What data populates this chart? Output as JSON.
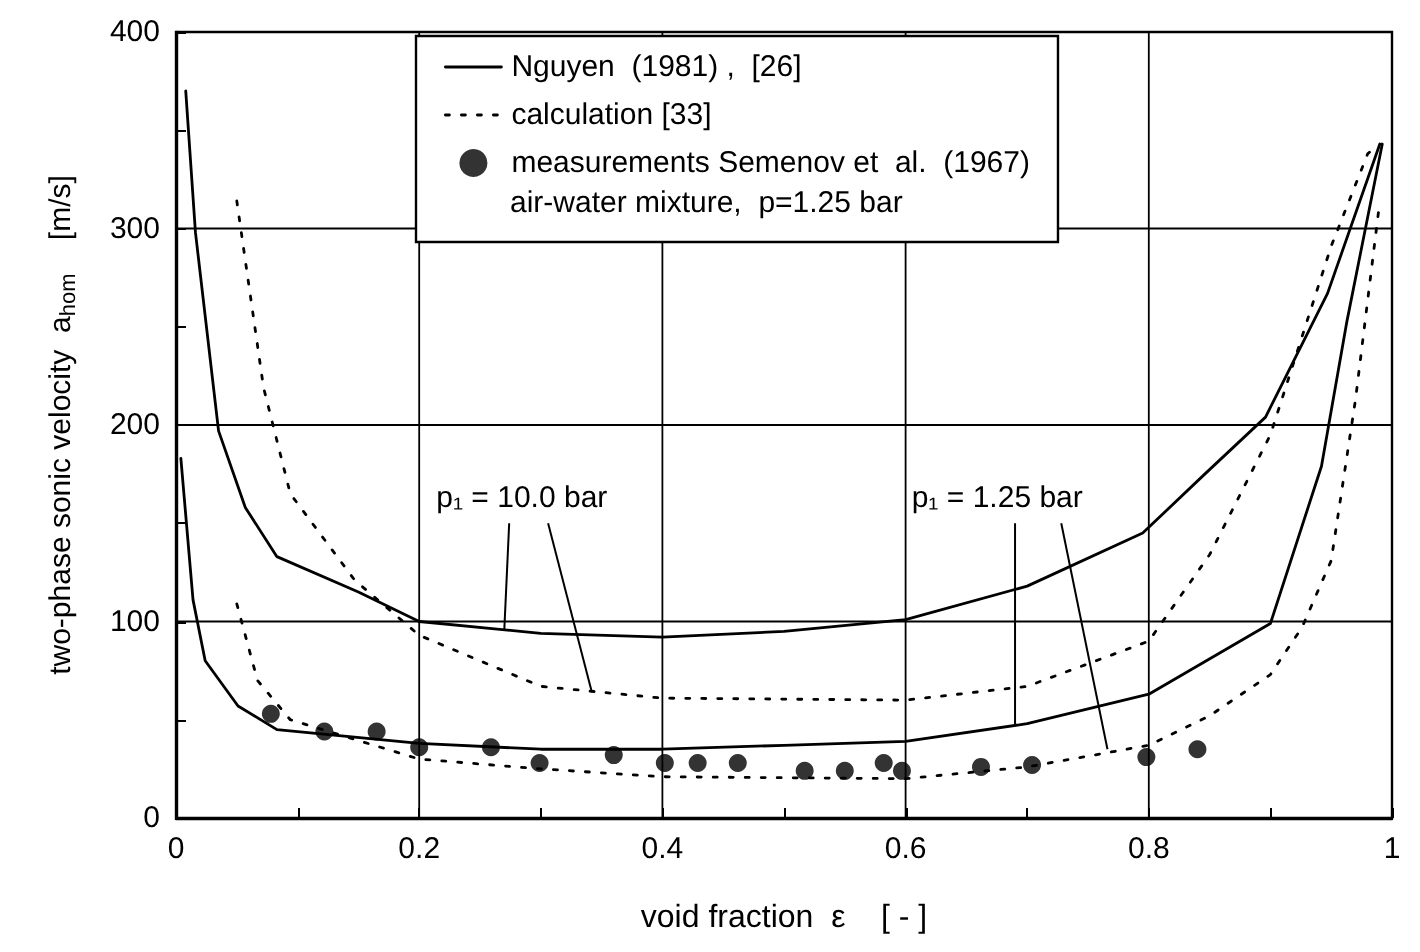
{
  "chart_data": {
    "type": "line",
    "xlabel": "void fraction  ε    [ - ]",
    "ylabel": "two-phase sonic velocity  a$_{hom}$    [m/s]",
    "xlim": [
      0,
      1
    ],
    "ylim": [
      0,
      400
    ],
    "xticks": [
      0,
      {
        "value": 0.1,
        "label": null
      },
      0.2,
      {
        "value": 0.3,
        "label": null
      },
      0.4,
      {
        "value": 0.5,
        "label": null
      },
      0.6,
      {
        "value": 0.7,
        "label": null
      },
      0.8,
      {
        "value": 0.9,
        "label": null
      },
      1
    ],
    "yticks": [
      0,
      {
        "value": 50,
        "label": null
      },
      100,
      {
        "value": 150,
        "label": null
      },
      200,
      {
        "value": 250,
        "label": null
      },
      300,
      {
        "value": 350,
        "label": null
      },
      400
    ],
    "grid": true,
    "legend": "top",
    "marker": "none",
    "series": [
      {
        "name": "Nguyen  (1981) ,  [26]",
        "color": "#000000",
        "line_style": "solid",
        "x": [
          0.008,
          0.016,
          0.035,
          0.057,
          0.083,
          0.15,
          0.2,
          0.3,
          0.4,
          0.5,
          0.6,
          0.7,
          0.795,
          0.846,
          0.896,
          0.947,
          0.99
        ],
        "values": [
          370,
          298,
          197,
          158,
          133,
          115,
          100,
          94,
          92,
          95,
          101,
          118,
          145,
          175,
          204,
          267,
          343
        ]
      },
      {
        "color": "#000000",
        "line_style": "solid",
        "x": [
          0.004,
          0.014,
          0.024,
          0.051,
          0.083,
          0.2,
          0.3,
          0.4,
          0.5,
          0.6,
          0.7,
          0.8,
          0.9,
          0.942,
          0.963,
          0.992
        ],
        "values": [
          183,
          111,
          80,
          57,
          45,
          38,
          35,
          35,
          37,
          39,
          48,
          63,
          99,
          179,
          253,
          343
        ]
      },
      {
        "name": "calculation [33]",
        "color": "#000000",
        "line_style": "dotted",
        "x": [
          0.05,
          0.072,
          0.094,
          0.147,
          0.2,
          0.3,
          0.4,
          0.6,
          0.7,
          0.8,
          0.85,
          0.9,
          0.95,
          0.98,
          0.987
        ],
        "values": [
          314,
          219,
          165,
          121,
          93,
          67,
          61,
          60,
          67,
          90,
          134,
          195,
          291,
          338,
          342
        ]
      },
      {
        "color": "#000000",
        "line_style": "dotted",
        "x": [
          0.05,
          0.067,
          0.094,
          0.2,
          0.3,
          0.4,
          0.6,
          0.7,
          0.8,
          0.85,
          0.9,
          0.926,
          0.95,
          0.97,
          0.99
        ],
        "values": [
          109,
          70,
          50,
          30,
          25,
          21,
          20,
          26,
          37,
          52,
          73,
          97,
          131,
          213,
          314
        ]
      },
      {
        "name": "measurements Semenov et  al.  (1967)",
        "type": "scatter",
        "marker": "circle",
        "color": "#000000",
        "x": [
          0.078,
          0.122,
          0.165,
          0.2,
          0.259,
          0.299,
          0.36,
          0.402,
          0.429,
          0.462,
          0.517,
          0.55,
          0.582,
          0.597,
          0.662,
          0.704,
          0.798,
          0.84
        ],
        "values": [
          53,
          44,
          44,
          36,
          36,
          28,
          32,
          28,
          28,
          28,
          24,
          24,
          28,
          24,
          26,
          27,
          31,
          35
        ]
      }
    ],
    "annotations": [
      "air-water mixture,  p=1.25 bar",
      {
        "text": "p₁ = 10.0 bar",
        "x": 0.27,
        "y": 96
      },
      {
        "text": "p₁ = 1.25 bar",
        "x": 0.69,
        "y": 47
      }
    ]
  }
}
